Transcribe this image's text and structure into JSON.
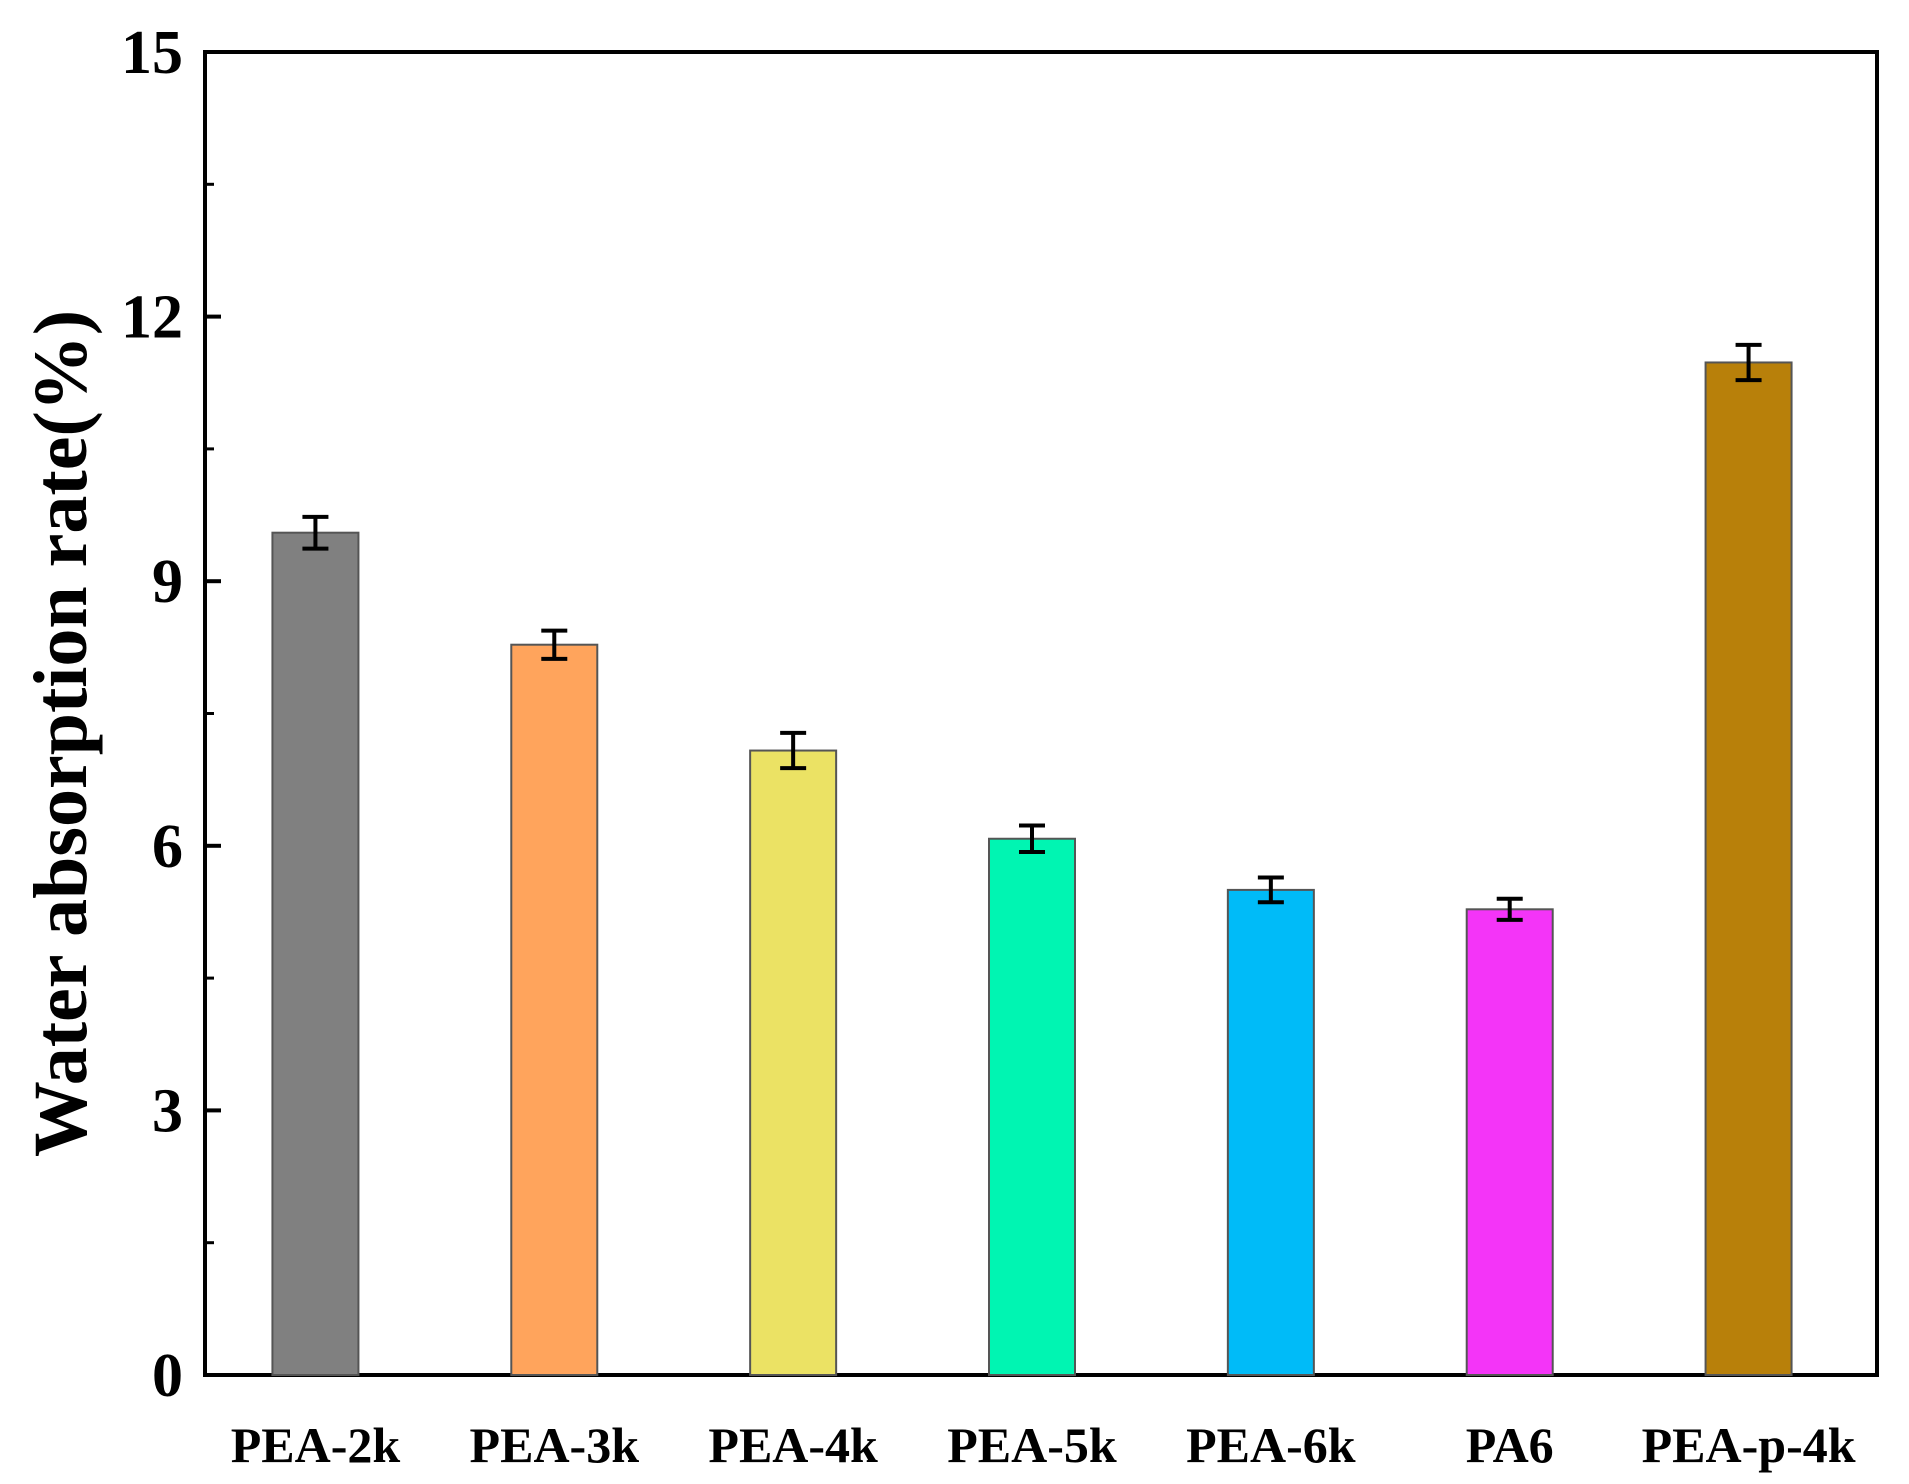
{
  "chart_data": {
    "type": "bar",
    "title": "",
    "xlabel": "",
    "ylabel": "Water absorption rate(%)",
    "ylim": [
      0,
      15
    ],
    "yticks": [
      0,
      3,
      6,
      9,
      12,
      15
    ],
    "ytick_labels": [
      "0",
      "3",
      "6",
      "9",
      "12",
      "15"
    ],
    "grid": false,
    "legend": "none",
    "categories": [
      "PEA-2k",
      "PEA-3k",
      "PEA-4k",
      "PEA-5k",
      "PEA-6k",
      "PA6",
      "PEA-p-4k"
    ],
    "values": [
      9.55,
      8.28,
      7.08,
      6.08,
      5.5,
      5.28,
      11.48
    ],
    "errors": [
      0.18,
      0.16,
      0.2,
      0.15,
      0.14,
      0.12,
      0.2
    ],
    "colors": [
      "#808080",
      "#ffa45c",
      "#ebe264",
      "#00f5b2",
      "#00bbf8",
      "#f434f8",
      "#b8800a"
    ],
    "edge_color": "#555555"
  }
}
